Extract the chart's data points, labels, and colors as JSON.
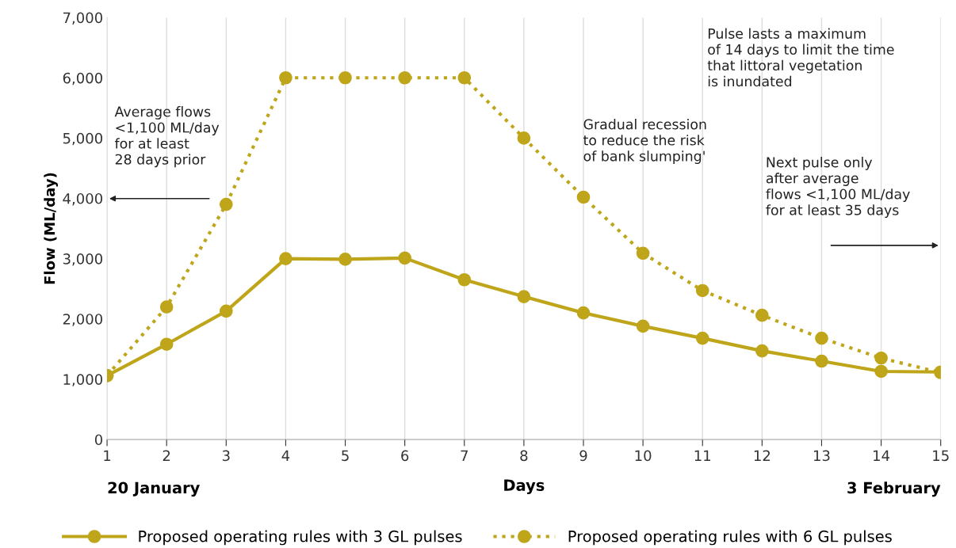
{
  "chart_data": {
    "type": "line",
    "xlabel": "Days",
    "ylabel": "Flow (ML/day)",
    "x": [
      1,
      2,
      3,
      4,
      5,
      6,
      7,
      8,
      9,
      10,
      11,
      12,
      13,
      14,
      15
    ],
    "series": [
      {
        "name": "Proposed operating rules with 3 GL pulses",
        "color": "#bfa51a",
        "line_style": "solid",
        "values": [
          1060,
          1580,
          2130,
          3000,
          2990,
          3010,
          2650,
          2370,
          2100,
          1880,
          1680,
          1470,
          1300,
          1130,
          1120
        ]
      },
      {
        "name": "Proposed operating rules with 6 GL pulses",
        "color": "#bfa51a",
        "line_style": "dotted",
        "values": [
          1060,
          2200,
          3900,
          6000,
          6000,
          6000,
          6000,
          5000,
          4020,
          3090,
          2470,
          2060,
          1680,
          1350,
          1110
        ]
      }
    ],
    "marker": "circle",
    "xlim": [
      1,
      15
    ],
    "xticks": [
      1,
      2,
      3,
      4,
      5,
      6,
      7,
      8,
      9,
      10,
      11,
      12,
      13,
      14,
      15
    ],
    "ylim": [
      0,
      7000
    ],
    "yticks": [
      {
        "value": 0,
        "label": "0"
      },
      {
        "value": 1000,
        "label": "1,000"
      },
      {
        "value": 2000,
        "label": "2,000"
      },
      {
        "value": 3000,
        "label": "3,000"
      },
      {
        "value": 4000,
        "label": "4,000"
      },
      {
        "value": 5000,
        "label": "5,000"
      },
      {
        "value": 6000,
        "label": "6,000"
      },
      {
        "value": 7000,
        "label": "7,000"
      }
    ],
    "grid": "x",
    "legend": "bottom",
    "annotations": [
      "20 January",
      "3 February",
      "Average flows\n<1,100 ML/day\nfor at least\n28 days prior",
      "Gradual recession\nto reduce the risk\nof bank slumping'",
      "Pulse lasts a maximum\nof 14 days to limit the time\nthat littoral vegetation\nis inundated",
      "Next pulse only\nafter average\nflows <1,100 ML/day\nfor at least 35 days"
    ]
  }
}
